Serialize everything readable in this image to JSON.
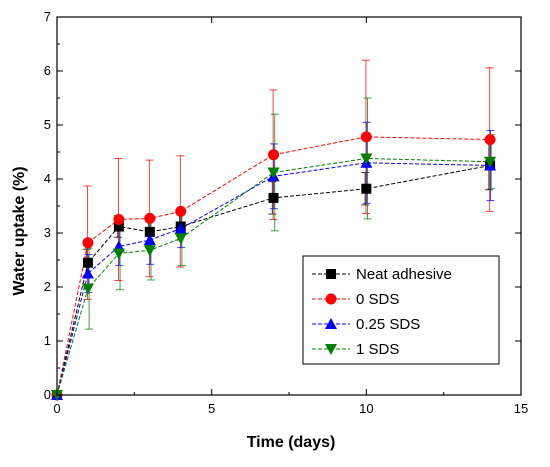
{
  "chart_data": {
    "type": "line",
    "xlabel": "Time (days)",
    "ylabel": "Water uptake (%)",
    "xlim": [
      0,
      15
    ],
    "ylim": [
      0,
      7
    ],
    "x_ticks": [
      0,
      5,
      10,
      15
    ],
    "y_ticks": [
      0,
      1,
      2,
      3,
      4,
      5,
      6,
      7
    ],
    "x": [
      0,
      1,
      2,
      3,
      4,
      7,
      10,
      14
    ],
    "legend_position": "bottom-right",
    "grid": false,
    "series": [
      {
        "name": "Neat adhesive",
        "color": "#000000",
        "marker": "square",
        "values": [
          0,
          2.45,
          3.12,
          3.02,
          3.12,
          3.65,
          3.82,
          4.25
        ],
        "errors": [
          0,
          0.25,
          0.2,
          0.25,
          0.25,
          0.3,
          0.3,
          0.45
        ]
      },
      {
        "name": "0 SDS",
        "color": "#ff0000",
        "marker": "circle",
        "values": [
          0,
          2.82,
          3.25,
          3.27,
          3.4,
          4.45,
          4.78,
          4.73
        ],
        "errors": [
          0,
          1.05,
          1.13,
          1.08,
          1.03,
          1.2,
          1.42,
          1.33
        ]
      },
      {
        "name": "0.25 SDS",
        "color": "#0000ff",
        "marker": "triangle-up",
        "values": [
          0,
          2.25,
          2.75,
          2.87,
          3.08,
          4.05,
          4.3,
          4.25
        ],
        "errors": [
          0,
          0.35,
          0.35,
          0.45,
          0.35,
          0.6,
          0.75,
          0.65
        ]
      },
      {
        "name": "1 SDS",
        "color": "#008000",
        "marker": "triangle-down",
        "values": [
          0,
          1.97,
          2.62,
          2.68,
          2.9,
          4.12,
          4.38,
          4.32
        ],
        "errors": [
          0,
          0.75,
          0.67,
          0.55,
          0.5,
          1.08,
          1.12,
          0.5
        ]
      }
    ]
  }
}
